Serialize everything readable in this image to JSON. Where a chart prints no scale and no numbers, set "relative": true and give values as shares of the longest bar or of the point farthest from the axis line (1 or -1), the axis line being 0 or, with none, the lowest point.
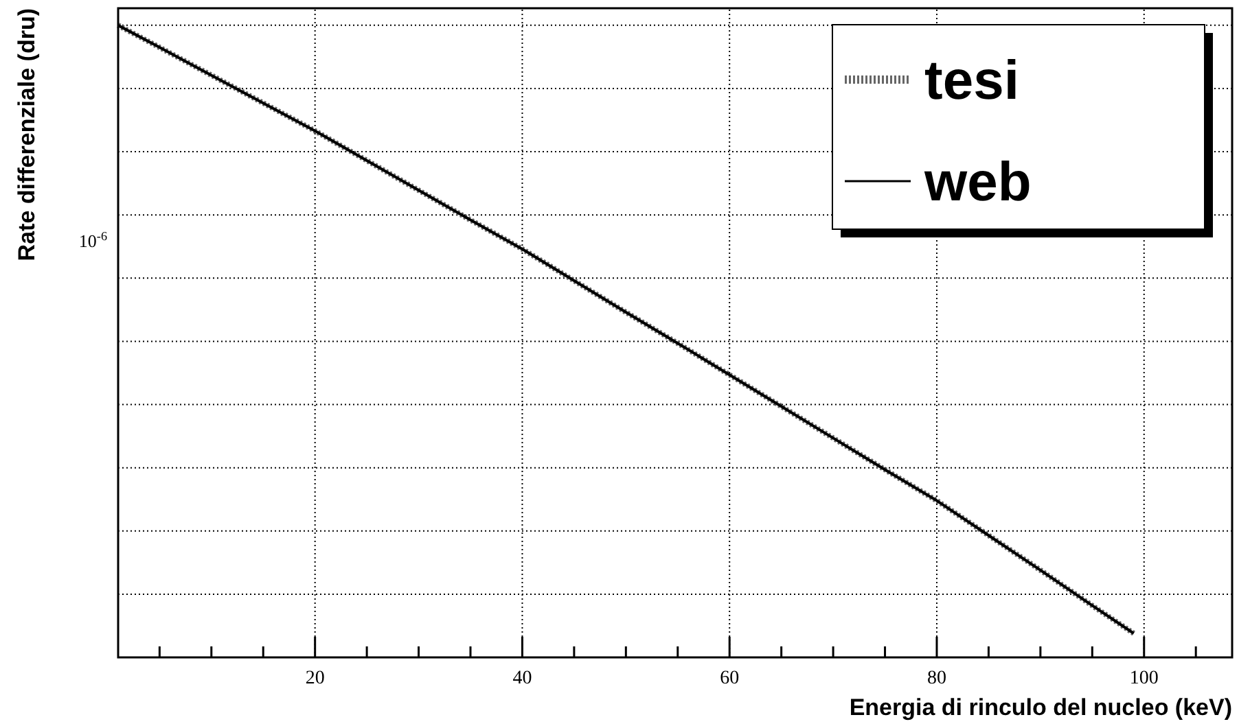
{
  "chart_data": {
    "type": "line",
    "xlabel": "Energia di rinculo del nucleo (keV)",
    "ylabel": "Rate differenziale (dru)",
    "x": [
      1,
      5,
      10,
      15,
      20,
      25,
      30,
      35,
      40,
      45,
      50,
      55,
      60,
      65,
      70,
      75,
      80,
      85,
      90,
      95,
      99
    ],
    "series": [
      {
        "name": "tesi",
        "color": "#666666",
        "line_style": "dotted",
        "values": [
          1,
          0.965,
          0.921,
          0.877,
          0.833,
          0.786,
          0.739,
          0.692,
          0.646,
          0.596,
          0.546,
          0.497,
          0.447,
          0.397,
          0.347,
          0.297,
          0.248,
          0.193,
          0.138,
          0.082,
          0.038
        ]
      },
      {
        "name": "web",
        "color": "#000000",
        "line_style": "solid",
        "values": [
          1,
          0.965,
          0.921,
          0.877,
          0.833,
          0.786,
          0.739,
          0.692,
          0.646,
          0.596,
          0.546,
          0.497,
          0.447,
          0.397,
          0.347,
          0.297,
          0.248,
          0.193,
          0.138,
          0.082,
          0.038
        ]
      }
    ],
    "relative": true,
    "annotations": [
      "10$^{-6}$"
    ],
    "xlim": [
      1,
      108.5
    ],
    "xticks": [
      {
        "value": 5,
        "label": null
      },
      {
        "value": 10,
        "label": null
      },
      {
        "value": 15,
        "label": null
      },
      20,
      {
        "value": 25,
        "label": null
      },
      {
        "value": 30,
        "label": null
      },
      {
        "value": 35,
        "label": null
      },
      40,
      {
        "value": 45,
        "label": null
      },
      {
        "value": 50,
        "label": null
      },
      {
        "value": 55,
        "label": null
      },
      60,
      {
        "value": 65,
        "label": null
      },
      {
        "value": 70,
        "label": null
      },
      {
        "value": 75,
        "label": null
      },
      80,
      {
        "value": 85,
        "label": null
      },
      {
        "value": 90,
        "label": null
      },
      {
        "value": 95,
        "label": null
      },
      100,
      {
        "value": 105,
        "label": null
      }
    ],
    "grid": true,
    "legend": "top right"
  }
}
